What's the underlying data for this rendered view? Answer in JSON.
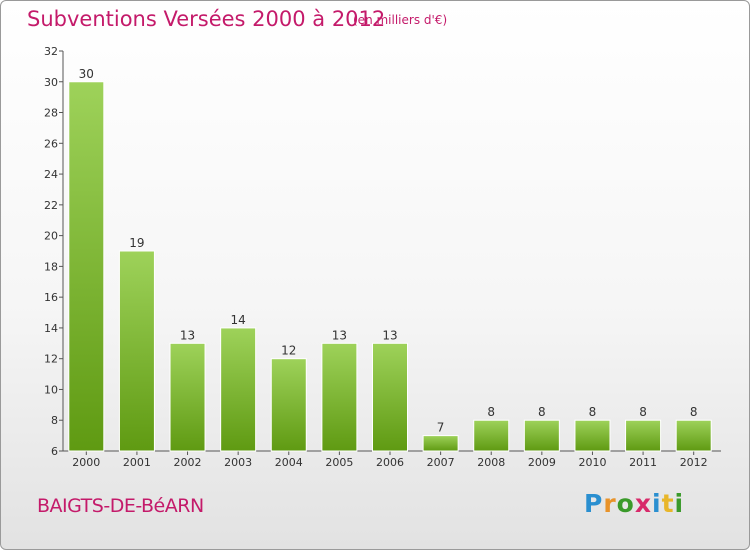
{
  "header": {
    "title": "Subventions Versées 2000 à 2012",
    "unit": "(en milliers d'€)"
  },
  "footer": {
    "commune": "BAIGTS-DE-BéARN",
    "logo_letters": [
      "P",
      "r",
      "o",
      "x",
      "i",
      "t",
      "i"
    ]
  },
  "colors": {
    "accent": "#c41a6a",
    "bar_top": "#9ed25a",
    "bar_bottom": "#5f9a12"
  },
  "chart_data": {
    "type": "bar",
    "title": "Subventions Versées 2000 à 2012",
    "subtitle": "(en milliers d'€)",
    "categories": [
      "2000",
      "2001",
      "2002",
      "2003",
      "2004",
      "2005",
      "2006",
      "2007",
      "2008",
      "2009",
      "2010",
      "2011",
      "2012"
    ],
    "values": [
      30,
      19,
      13,
      14,
      12,
      13,
      13,
      7,
      8,
      8,
      8,
      8,
      8
    ],
    "value_labels": [
      "30",
      "19",
      "13",
      "14",
      "12",
      "13",
      "13",
      "7",
      "8",
      "8",
      "8",
      "8",
      "8"
    ],
    "ylim": [
      6,
      32
    ],
    "yticks": [
      6,
      8,
      10,
      12,
      14,
      16,
      18,
      20,
      22,
      24,
      26,
      28,
      30,
      32
    ],
    "ytick_labels": [
      "6",
      "8",
      "10",
      "12",
      "14",
      "16",
      "18",
      "20",
      "22",
      "24",
      "26",
      "28",
      "30",
      "32"
    ],
    "grid": false,
    "legend": "none"
  }
}
